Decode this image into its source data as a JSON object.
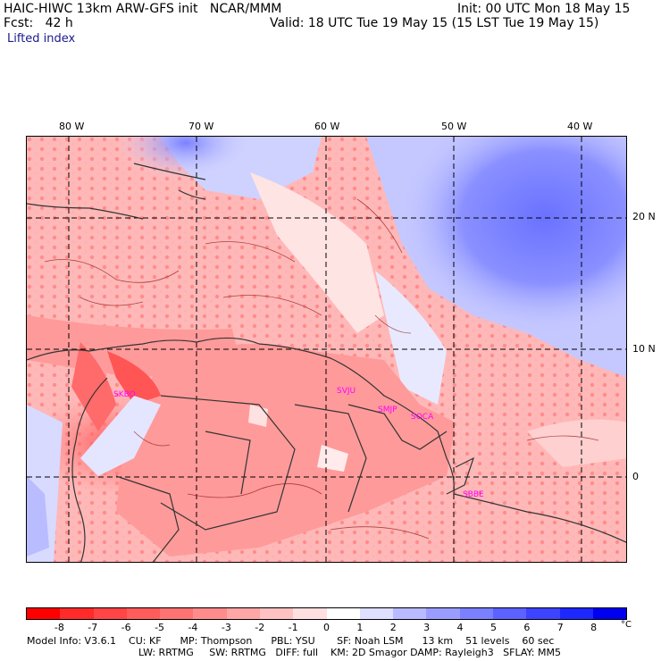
{
  "header": {
    "title": "HAIC-HIWC 13km ARW-GFS init   NCAR/MMM",
    "fcst": "Fcst:   42 h",
    "init": "Init: 00 UTC Mon 18 May 15",
    "valid": "Valid: 18 UTC Tue 19 May 15 (15 LST Tue 19 May 15)",
    "variable": "Lifted index"
  },
  "axes": {
    "lon_labels": [
      "80 W",
      "70 W",
      "60 W",
      "50 W",
      "40 W"
    ],
    "lat_labels": [
      "20 N",
      "10 N",
      "0"
    ]
  },
  "stations": [
    "SKBO",
    "SVJU",
    "SMJP",
    "SOCA",
    "SBBE"
  ],
  "colorbar": {
    "ticks": [
      "-8",
      "-7",
      "-6",
      "-5",
      "-4",
      "-3",
      "-2",
      "-1",
      "0",
      "1",
      "2",
      "3",
      "4",
      "5",
      "6",
      "7",
      "8"
    ],
    "unit": "°C",
    "colors": [
      "#ff0000",
      "#ff2a2a",
      "#ff4545",
      "#ff5c5c",
      "#ff7373",
      "#ff8c8c",
      "#ffa6a6",
      "#ffc2c2",
      "#ffe0e0",
      "#ffffff",
      "#dfe0ff",
      "#b8bbff",
      "#9a9dff",
      "#7b80ff",
      "#5c62ff",
      "#3d44ff",
      "#1f27ff",
      "#0000f0"
    ]
  },
  "footer": {
    "line1": "Model Info: V3.6.1    CU: KF      MP: Thompson      PBL: YSU       SF: Noah LSM      13 km    51 levels    60 sec",
    "line2": "LW: RRTMG     SW: RRTMG   DIFF: full    KM: 2D Smagor DAMP: Rayleigh3   SFLAY: MM5"
  }
}
